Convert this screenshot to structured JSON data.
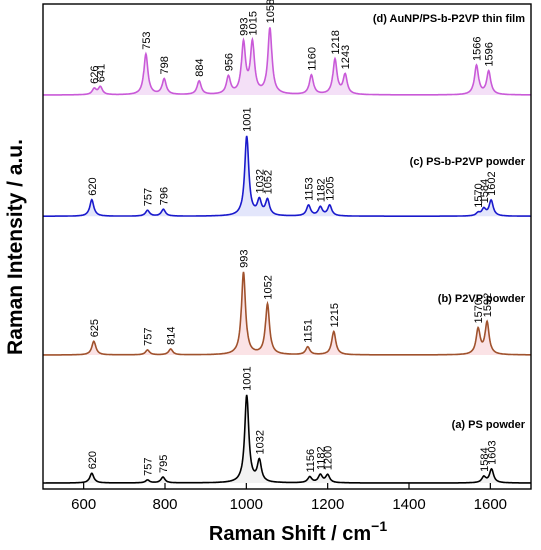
{
  "chart_data": {
    "type": "line",
    "title": "",
    "xlabel": "Raman Shift / cm",
    "xlabel_sup": "−1",
    "ylabel": "Raman Intensity / a.u.",
    "xlim": [
      500,
      1700
    ],
    "x_ticks": [
      "600",
      "800",
      "1000",
      "1200",
      "1400",
      "1600"
    ],
    "x_tick_values": [
      600,
      800,
      1000,
      1200,
      1400,
      1600
    ],
    "grid": false,
    "legend": "none",
    "series": [
      {
        "name": "(a) PS powder",
        "color": "#000000",
        "fill": "#f2f2f2",
        "baseline": 0,
        "peaks": [
          {
            "x": 620,
            "h": 10,
            "label": "620"
          },
          {
            "x": 757,
            "h": 3,
            "label": "757"
          },
          {
            "x": 795,
            "h": 6,
            "label": "795"
          },
          {
            "x": 1001,
            "h": 90,
            "label": "1001"
          },
          {
            "x": 1032,
            "h": 22,
            "label": "1032"
          },
          {
            "x": 1156,
            "h": 6,
            "label": "1156"
          },
          {
            "x": 1182,
            "h": 8,
            "label": "1182"
          },
          {
            "x": 1200,
            "h": 8,
            "label": "1200"
          },
          {
            "x": 1584,
            "h": 6,
            "label": "1584"
          },
          {
            "x": 1603,
            "h": 14,
            "label": "1603"
          }
        ]
      },
      {
        "name": "(b) P2VP powder",
        "color": "#a0522d",
        "fill": "#fbe3e6",
        "baseline": 132,
        "peaks": [
          {
            "x": 625,
            "h": 14,
            "label": "625"
          },
          {
            "x": 757,
            "h": 5,
            "label": "757"
          },
          {
            "x": 814,
            "h": 6,
            "label": "814"
          },
          {
            "x": 993,
            "h": 85,
            "label": "993"
          },
          {
            "x": 1052,
            "h": 52,
            "label": "1052"
          },
          {
            "x": 1151,
            "h": 8,
            "label": "1151"
          },
          {
            "x": 1215,
            "h": 24,
            "label": "1215"
          },
          {
            "x": 1570,
            "h": 26,
            "label": "1570"
          },
          {
            "x": 1592,
            "h": 33,
            "label": "1592"
          }
        ]
      },
      {
        "name": "(c) PS-b-P2VP powder",
        "color": "#1a1acc",
        "fill": "#e3e6fb",
        "baseline": 275,
        "peaks": [
          {
            "x": 620,
            "h": 17,
            "label": "620"
          },
          {
            "x": 757,
            "h": 6,
            "label": "757"
          },
          {
            "x": 796,
            "h": 7,
            "label": "796"
          },
          {
            "x": 1001,
            "h": 82,
            "label": "1001"
          },
          {
            "x": 1032,
            "h": 15,
            "label": "1032"
          },
          {
            "x": 1052,
            "h": 16,
            "label": "1052"
          },
          {
            "x": 1153,
            "h": 11,
            "label": "1153"
          },
          {
            "x": 1182,
            "h": 9,
            "label": "1182"
          },
          {
            "x": 1205,
            "h": 11,
            "label": "1205"
          },
          {
            "x": 1570,
            "h": 3,
            "label": "1570"
          },
          {
            "x": 1584,
            "h": 7,
            "label": "1584"
          },
          {
            "x": 1602,
            "h": 16,
            "label": "1602"
          }
        ]
      },
      {
        "name": "(d) AuNP/PS-b-P2VP thin film",
        "color": "#c95ad8",
        "fill": "#f4e0f7",
        "baseline": 400,
        "peaks": [
          {
            "x": 626,
            "h": 6,
            "label": "626"
          },
          {
            "x": 641,
            "h": 8,
            "label": "641"
          },
          {
            "x": 753,
            "h": 42,
            "label": "753"
          },
          {
            "x": 798,
            "h": 16,
            "label": "798"
          },
          {
            "x": 884,
            "h": 14,
            "label": "884"
          },
          {
            "x": 956,
            "h": 18,
            "label": "956"
          },
          {
            "x": 993,
            "h": 52,
            "label": "993"
          },
          {
            "x": 1015,
            "h": 52,
            "label": "1015"
          },
          {
            "x": 1058,
            "h": 68,
            "label": "1058"
          },
          {
            "x": 1160,
            "h": 20,
            "label": "1160"
          },
          {
            "x": 1218,
            "h": 36,
            "label": "1218"
          },
          {
            "x": 1243,
            "h": 20,
            "label": "1243"
          },
          {
            "x": 1566,
            "h": 30,
            "label": "1566"
          },
          {
            "x": 1596,
            "h": 24,
            "label": "1596"
          }
        ]
      }
    ]
  }
}
